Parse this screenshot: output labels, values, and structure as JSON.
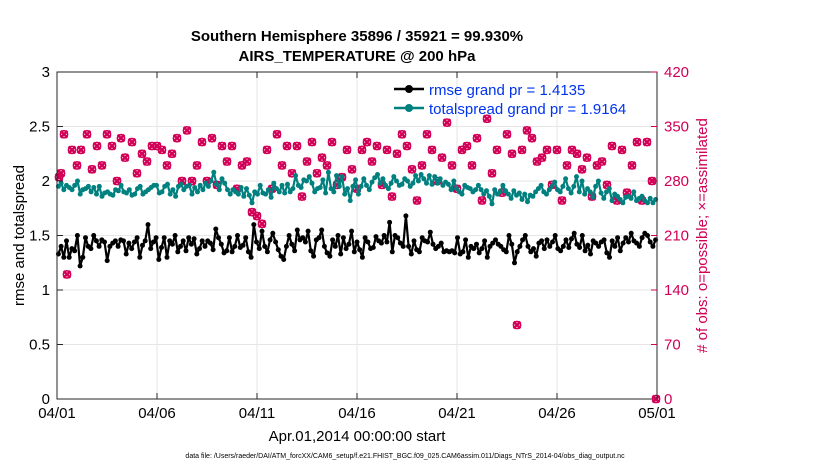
{
  "chart_data": {
    "type": "line",
    "title_line1": "Southern Hemisphere 35896 / 35921 = 99.930%",
    "title_line2": "AIRS_TEMPERATURE @ 200 hPa",
    "xlabel": "Apr.01,2014 00:00:00 start",
    "ylabel": "rmse and totalspread",
    "ylabel_right": "# of obs: o=possible; ×=assimilated",
    "footnote": "data file: /Users/raeder/DAI/ATM_forcXX/CAM6_setup/f.e21.FHIST_BGC.f09_025.CAM6assim.011/Diags_NTrS_2014-04/obs_diag_output.nc",
    "xlim": [
      0,
      30
    ],
    "ylim": [
      0,
      3
    ],
    "ylim_right": [
      0,
      420
    ],
    "x_ticks": [
      0,
      5,
      10,
      15,
      20,
      25,
      30
    ],
    "x_tick_labels": [
      "04/01",
      "04/06",
      "04/11",
      "04/16",
      "04/21",
      "04/26",
      "05/01"
    ],
    "y_ticks": [
      0,
      0.5,
      1,
      1.5,
      2,
      2.5,
      3
    ],
    "y_tick_labels": [
      "0",
      "0.5",
      "1",
      "1.5",
      "2",
      "2.5",
      "3"
    ],
    "y_right_ticks": [
      0,
      70,
      140,
      210,
      280,
      350,
      420
    ],
    "y_right_tick_labels": [
      "0",
      "70",
      "140",
      "210",
      "280",
      "350",
      "420"
    ],
    "colors": {
      "rmse": "#000000",
      "spread": "#00807f",
      "obs": "#d10056",
      "legend_text": "#0033ee",
      "grid": "#e6e6e6"
    },
    "series": [
      {
        "name": "rmse",
        "legend": "rmse grand pr = 1.4135",
        "values": [
          1.33,
          1.4,
          1.3,
          1.45,
          1.3,
          1.38,
          1.36,
          1.5,
          1.22,
          1.3,
          1.48,
          1.4,
          1.38,
          1.5,
          1.45,
          1.4,
          1.46,
          1.44,
          1.27,
          1.4,
          1.43,
          1.45,
          1.4,
          1.46,
          1.45,
          1.33,
          1.43,
          1.38,
          1.44,
          1.48,
          1.3,
          1.41,
          1.45,
          1.6,
          1.38,
          1.44,
          1.48,
          1.28,
          1.39,
          1.48,
          1.3,
          1.45,
          1.42,
          1.5,
          1.35,
          1.4,
          1.45,
          1.36,
          1.48,
          1.42,
          1.47,
          1.33,
          1.38,
          1.45,
          1.4,
          1.45,
          1.43,
          1.37,
          1.56,
          1.48,
          1.42,
          1.34,
          1.36,
          1.48,
          1.35,
          1.4,
          1.5,
          1.39,
          1.41,
          1.48,
          1.35,
          1.3,
          1.6,
          1.44,
          1.38,
          1.54,
          1.4,
          1.35,
          1.46,
          1.52,
          1.44,
          1.37,
          1.31,
          1.28,
          1.4,
          1.5,
          1.42,
          1.36,
          1.55,
          1.46,
          1.48,
          1.44,
          1.54,
          1.36,
          1.31,
          1.46,
          1.48,
          1.55,
          1.4,
          1.34,
          1.31,
          1.46,
          1.4,
          1.5,
          1.33,
          1.48,
          1.38,
          1.42,
          1.54,
          1.35,
          1.44,
          1.37,
          1.3,
          1.48,
          1.44,
          1.38,
          1.39,
          1.49,
          1.45,
          1.43,
          1.5,
          1.44,
          1.62,
          1.35,
          1.5,
          1.48,
          1.43,
          1.4,
          1.68,
          1.4,
          1.33,
          1.45,
          1.37,
          1.35,
          1.48,
          1.45,
          1.44,
          1.53,
          1.42,
          1.38,
          1.4,
          1.43,
          1.35,
          1.36,
          1.35,
          1.36,
          1.34,
          1.48,
          1.33,
          1.35,
          1.46,
          1.3,
          1.4,
          1.38,
          1.42,
          1.34,
          1.38,
          1.45,
          1.3,
          1.4,
          1.43,
          1.46,
          1.42,
          1.4,
          1.37,
          1.35,
          1.5,
          1.42,
          1.25,
          1.35,
          1.4,
          1.46,
          1.5,
          1.4,
          1.35,
          1.38,
          1.31,
          1.43,
          1.45,
          1.38,
          1.46,
          1.4,
          1.44,
          1.5,
          1.38,
          1.36,
          1.4,
          1.46,
          1.39,
          1.47,
          1.52,
          1.42,
          1.39,
          1.5,
          1.36,
          1.41,
          1.33,
          1.45,
          1.43,
          1.4,
          1.44,
          1.46,
          1.34,
          1.3,
          1.45,
          1.4,
          1.48,
          1.36,
          1.43,
          1.48,
          1.44,
          1.52,
          1.45,
          1.43,
          1.4,
          1.48,
          1.52,
          1.5,
          1.44,
          1.4,
          1.46
        ]
      },
      {
        "name": "totalspread",
        "legend": "totalspread grand pr = 1.9164",
        "values": [
          1.95,
          1.98,
          1.92,
          1.96,
          1.94,
          1.92,
          1.96,
          2.0,
          1.88,
          1.92,
          1.93,
          1.95,
          1.9,
          1.94,
          1.88,
          1.95,
          1.86,
          1.89,
          1.9,
          1.88,
          1.87,
          1.92,
          1.91,
          1.96,
          1.9,
          1.89,
          1.92,
          1.87,
          1.88,
          1.93,
          1.95,
          1.88,
          1.9,
          1.92,
          1.94,
          1.96,
          1.96,
          1.89,
          1.9,
          1.95,
          1.97,
          1.88,
          1.92,
          1.86,
          1.95,
          1.97,
          1.92,
          1.95,
          1.96,
          1.88,
          1.94,
          1.9,
          1.96,
          1.92,
          1.98,
          1.95,
          2.0,
          2.08,
          1.97,
          1.92,
          2.02,
          1.98,
          1.92,
          1.88,
          1.92,
          1.9,
          1.88,
          1.94,
          1.86,
          1.93,
          1.87,
          1.8,
          1.9,
          1.88,
          1.96,
          1.89,
          1.88,
          1.92,
          1.85,
          1.98,
          1.93,
          1.9,
          1.96,
          1.89,
          1.97,
          1.9,
          1.93,
          2.05,
          1.96,
          1.94,
          2.01,
          2.0,
          2.04,
          1.98,
          1.9,
          1.93,
          1.94,
          2.01,
          1.89,
          2.08,
          1.93,
          1.9,
          2.05,
          1.95,
          2.04,
          1.88,
          1.93,
          1.82,
          1.95,
          2.01,
          1.88,
          1.95,
          2.02,
          1.96,
          1.92,
          1.99,
          2.03,
          2.06,
          1.98,
          2.02,
          1.96,
          1.93,
          1.98,
          2.04,
          2.0,
          1.96,
          1.97,
          2.02,
          2.0,
          1.95,
          1.98,
          2.05,
          2.0,
          2.06,
          2.02,
          1.98,
          2.05,
          1.97,
          2.04,
          1.98,
          2.02,
          1.96,
          1.99,
          1.97,
          1.92,
          2.0,
          1.93,
          1.9,
          1.88,
          1.96,
          1.94,
          1.93,
          1.9,
          1.92,
          1.96,
          1.92,
          1.88,
          1.91,
          1.86,
          1.79,
          1.92,
          1.88,
          1.9,
          1.96,
          1.91,
          1.88,
          1.84,
          1.91,
          1.87,
          1.89,
          1.83,
          1.88,
          1.81,
          1.87,
          1.86,
          1.9,
          1.93,
          1.96,
          1.9,
          1.88,
          1.92,
          1.95,
          1.99,
          1.92,
          1.9,
          1.95,
          2.02,
          1.93,
          1.89,
          1.95,
          2.04,
          1.9,
          2.0,
          1.88,
          1.93,
          1.9,
          1.85,
          1.95,
          2.0,
          1.89,
          1.84,
          1.9,
          1.93,
          1.82,
          1.88,
          1.86,
          1.83,
          1.8,
          1.85,
          1.86,
          1.84,
          1.9,
          1.82,
          1.84,
          1.86,
          1.82,
          1.8,
          1.84,
          1.8,
          1.83
        ]
      }
    ],
    "obs_possible": {
      "name": "# of obs possible",
      "x": [
        0.1,
        0.2,
        0.35,
        0.5,
        0.75,
        1.0,
        1.2,
        1.5,
        1.75,
        2.0,
        2.25,
        2.5,
        2.75,
        3.0,
        3.2,
        3.4,
        3.75,
        4.0,
        4.25,
        4.5,
        4.75,
        5.0,
        5.25,
        5.5,
        5.75,
        6.0,
        6.25,
        6.5,
        6.75,
        7.0,
        7.25,
        7.5,
        7.75,
        8.0,
        8.25,
        8.5,
        8.75,
        9.0,
        9.25,
        9.5,
        9.75,
        10.0,
        10.25,
        10.5,
        10.75,
        11.0,
        11.25,
        11.5,
        11.75,
        12.0,
        12.25,
        12.5,
        12.75,
        13.0,
        13.25,
        13.5,
        13.75,
        14.0,
        14.25,
        14.5,
        14.75,
        15.0,
        15.25,
        15.5,
        15.75,
        16.0,
        16.25,
        16.5,
        16.75,
        17.0,
        17.25,
        17.5,
        17.75,
        18.0,
        18.25,
        18.5,
        18.75,
        19.0,
        19.25,
        19.5,
        19.75,
        20.0,
        20.25,
        20.5,
        20.75,
        21.0,
        21.25,
        21.5,
        21.75,
        22.0,
        22.25,
        22.5,
        22.75,
        23.0,
        23.25,
        23.5,
        23.75,
        24.0,
        24.25,
        24.5,
        24.75,
        25.0,
        25.25,
        25.5,
        25.75,
        26.0,
        26.25,
        26.5,
        26.75,
        27.0,
        27.25,
        27.5,
        27.75,
        28.0,
        28.25,
        28.5,
        28.75,
        29.0,
        29.25,
        29.5,
        29.75,
        29.95
      ],
      "values": [
        285,
        290,
        340,
        160,
        320,
        300,
        320,
        340,
        295,
        325,
        300,
        340,
        325,
        280,
        335,
        310,
        330,
        290,
        315,
        305,
        325,
        325,
        320,
        300,
        315,
        335,
        280,
        345,
        280,
        300,
        330,
        280,
        335,
        275,
        325,
        305,
        325,
        270,
        300,
        305,
        240,
        235,
        225,
        320,
        270,
        340,
        300,
        325,
        290,
        325,
        260,
        305,
        330,
        290,
        310,
        300,
        330,
        275,
        285,
        320,
        295,
        270,
        320,
        330,
        305,
        325,
        275,
        320,
        260,
        315,
        340,
        325,
        295,
        255,
        300,
        340,
        320,
        280,
        310,
        355,
        300,
        270,
        320,
        325,
        300,
        335,
        255,
        360,
        290,
        320,
        265,
        340,
        315,
        95,
        320,
        345,
        335,
        305,
        310,
        320,
        275,
        320,
        255,
        300,
        320,
        315,
        295,
        310,
        260,
        300,
        305,
        275,
        325,
        255,
        320,
        265,
        300,
        330,
        255,
        330,
        280,
        0
      ]
    },
    "obs_assimilated": {
      "name": "# of obs assimilated",
      "x": [
        0.1,
        0.2,
        0.35,
        0.5,
        0.75,
        1.0,
        1.2,
        1.5,
        1.75,
        2.0,
        2.25,
        2.5,
        2.75,
        3.0,
        3.2,
        3.4,
        3.75,
        4.0,
        4.25,
        4.5,
        4.75,
        5.0,
        5.25,
        5.5,
        5.75,
        6.0,
        6.25,
        6.5,
        6.75,
        7.0,
        7.25,
        7.5,
        7.75,
        8.0,
        8.25,
        8.5,
        8.75,
        9.0,
        9.25,
        9.5,
        9.75,
        10.0,
        10.25,
        10.5,
        10.75,
        11.0,
        11.25,
        11.5,
        11.75,
        12.0,
        12.25,
        12.5,
        12.75,
        13.0,
        13.25,
        13.5,
        13.75,
        14.0,
        14.25,
        14.5,
        14.75,
        15.0,
        15.25,
        15.5,
        15.75,
        16.0,
        16.25,
        16.5,
        16.75,
        17.0,
        17.25,
        17.5,
        17.75,
        18.0,
        18.25,
        18.5,
        18.75,
        19.0,
        19.25,
        19.5,
        19.75,
        20.0,
        20.25,
        20.5,
        20.75,
        21.0,
        21.25,
        21.5,
        21.75,
        22.0,
        22.25,
        22.5,
        22.75,
        23.0,
        23.25,
        23.5,
        23.75,
        24.0,
        24.25,
        24.5,
        24.75,
        25.0,
        25.25,
        25.5,
        25.75,
        26.0,
        26.25,
        26.5,
        26.75,
        27.0,
        27.25,
        27.5,
        27.75,
        28.0,
        28.25,
        28.5,
        28.75,
        29.0,
        29.25,
        29.5,
        29.75,
        29.95
      ],
      "values": [
        285,
        290,
        340,
        160,
        320,
        300,
        320,
        340,
        295,
        325,
        300,
        340,
        325,
        280,
        335,
        310,
        330,
        290,
        315,
        305,
        325,
        325,
        320,
        300,
        315,
        335,
        280,
        345,
        280,
        300,
        330,
        280,
        335,
        275,
        325,
        305,
        325,
        270,
        300,
        305,
        240,
        235,
        225,
        320,
        270,
        340,
        300,
        325,
        290,
        325,
        260,
        305,
        330,
        290,
        310,
        300,
        330,
        275,
        285,
        320,
        295,
        270,
        320,
        330,
        305,
        325,
        275,
        320,
        260,
        315,
        340,
        325,
        295,
        255,
        300,
        340,
        320,
        280,
        310,
        355,
        300,
        270,
        320,
        325,
        300,
        335,
        255,
        360,
        290,
        320,
        265,
        340,
        315,
        95,
        320,
        345,
        335,
        305,
        310,
        320,
        275,
        320,
        255,
        300,
        320,
        315,
        295,
        310,
        260,
        300,
        305,
        275,
        325,
        255,
        320,
        265,
        300,
        330,
        255,
        330,
        280,
        0
      ]
    }
  }
}
